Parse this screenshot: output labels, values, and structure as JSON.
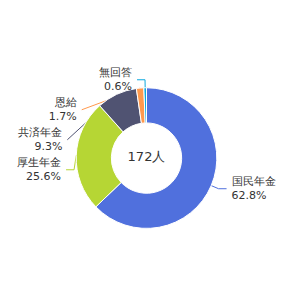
{
  "chart_data": {
    "type": "pie",
    "categories": [
      "国民年金",
      "厚生年金",
      "共済年金",
      "恩給",
      "無回答"
    ],
    "values": [
      62.8,
      25.6,
      9.3,
      1.7,
      0.6
    ],
    "value_labels": [
      "62.8%",
      "25.6%",
      "9.3%",
      "1.7%",
      "0.6%"
    ],
    "annotations": [
      "172人"
    ],
    "data_labels": true
  }
}
